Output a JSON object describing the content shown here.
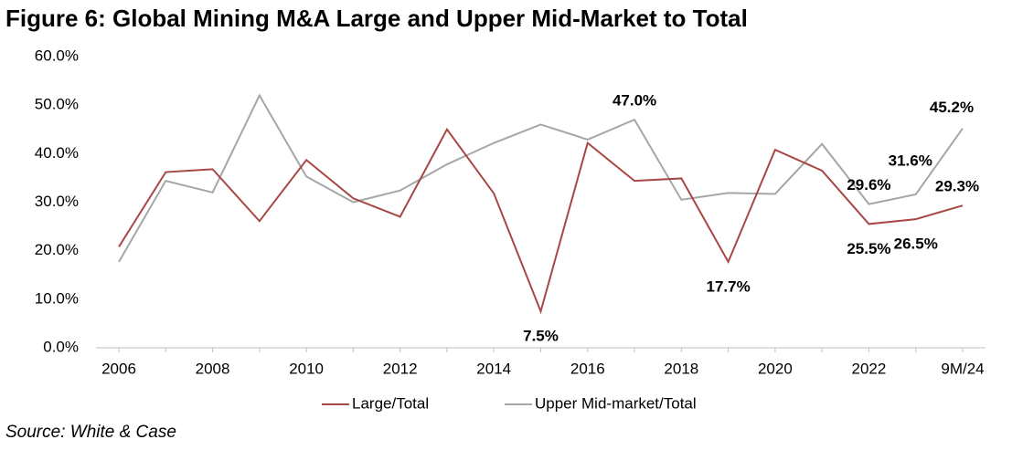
{
  "chart_data": {
    "type": "line",
    "title": "Figure 6: Global Mining M&A Large and Upper Mid-Market to Total",
    "source": "Source: White & Case",
    "categories": [
      "2006",
      null,
      "2008",
      null,
      "2010",
      null,
      "2012",
      null,
      "2014",
      null,
      "2016",
      null,
      "2018",
      null,
      "2020",
      null,
      "2022",
      null,
      "9M/24"
    ],
    "series": [
      {
        "name": "Large/Total",
        "color": "#a84744",
        "values": [
          20.8,
          36.2,
          36.8,
          26.1,
          38.7,
          30.8,
          27.0,
          45.0,
          31.8,
          7.5,
          42.2,
          34.4,
          34.9,
          17.7,
          40.8,
          36.5,
          25.5,
          26.5,
          29.3
        ],
        "value_labels": [
          null,
          null,
          null,
          null,
          null,
          null,
          null,
          null,
          null,
          "7.5%",
          null,
          null,
          null,
          "17.7%",
          null,
          null,
          "25.5%",
          "26.5%",
          "29.3%"
        ]
      },
      {
        "name": "Upper Mid-market/Total",
        "color": "#a6a6a6",
        "values": [
          17.7,
          34.4,
          32.0,
          52.0,
          35.3,
          30.0,
          32.4,
          37.8,
          42.2,
          46.0,
          42.9,
          47.0,
          30.5,
          31.9,
          31.7,
          42.0,
          29.6,
          31.6,
          45.2
        ],
        "value_labels": [
          null,
          null,
          null,
          null,
          null,
          null,
          null,
          null,
          null,
          null,
          null,
          "47.0%",
          null,
          null,
          null,
          null,
          "29.6%",
          "31.6%",
          "45.2%"
        ]
      }
    ],
    "ylim": [
      0,
      60
    ],
    "yticks": [
      {
        "value": 0,
        "label": "0.0%"
      },
      {
        "value": 10,
        "label": "10.0%"
      },
      {
        "value": 20,
        "label": "20.0%"
      },
      {
        "value": 30,
        "label": "30.0%"
      },
      {
        "value": 40,
        "label": "40.0%"
      },
      {
        "value": 50,
        "label": "50.0%"
      },
      {
        "value": 60,
        "label": "60.0%"
      }
    ],
    "grid": false,
    "legend": "bottom"
  }
}
